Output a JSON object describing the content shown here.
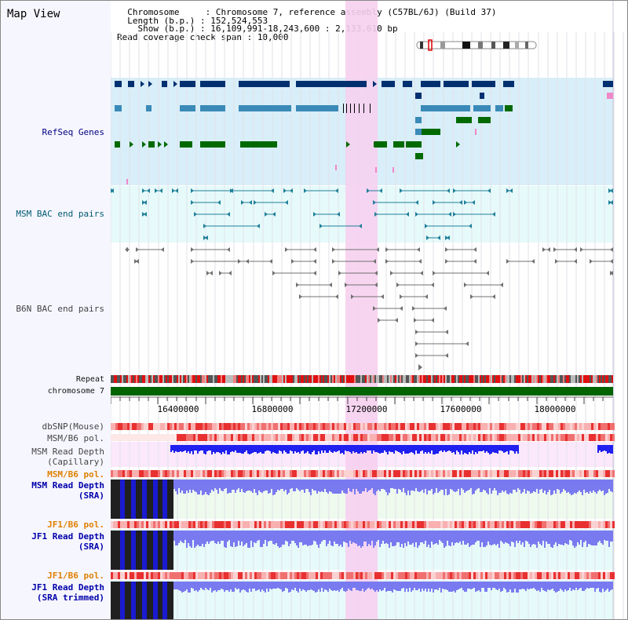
{
  "panel_title": "Map View",
  "info": {
    "chromosome_label": "Chromosome     :",
    "chromosome_value": "Chromosome 7, reference assembly (C57BL/6J) (Build 37)",
    "length_label": "Length (b.p.) :",
    "length_value": "152,524,553",
    "show_label": "Show (b.p.) :",
    "show_value": "16,109,991-18,243,600 : 2,133,610 bp",
    "coverage_label": "Read coverage check span :",
    "coverage_value": "10,000"
  },
  "tracks": [
    {
      "id": "refseq",
      "label": "RefSeq Genes",
      "color": "#000080"
    },
    {
      "id": "msm-bac",
      "label": "MSM BAC end pairs",
      "color": "#005a70"
    },
    {
      "id": "b6n-bac",
      "label": "B6N BAC end pairs",
      "color": "#444444"
    },
    {
      "id": "repeat",
      "label": "Repeat",
      "color": "#111111"
    },
    {
      "id": "chromosome",
      "label": "chromosome 7",
      "color": "#111111"
    },
    {
      "id": "dbsnp",
      "label": "dbSNP(Mouse)",
      "color": "#444444"
    },
    {
      "id": "msm-b6-pol",
      "label": "MSM/B6 pol.",
      "color": "#444444"
    },
    {
      "id": "msm-depth-cap",
      "label": "MSM Read Depth\n(Capillary)",
      "color": "#444444"
    },
    {
      "id": "msm-b6-pol-2",
      "label": "MSM/B6 pol.",
      "color": "#e08000"
    },
    {
      "id": "msm-depth-sra",
      "label": "MSM Read Depth\n(SRA)",
      "color": "#0000aa"
    },
    {
      "id": "jf1-b6-pol",
      "label": "JF1/B6 pol.",
      "color": "#e08000"
    },
    {
      "id": "jf1-depth-sra",
      "label": "JF1 Read Depth\n(SRA)",
      "color": "#0000aa"
    },
    {
      "id": "jf1-b6-pol-2",
      "label": "JF1/B6 pol.",
      "color": "#e08000"
    },
    {
      "id": "jf1-depth-trim",
      "label": "JF1 Read Depth\n(SRA trimmed)",
      "color": "#0000aa"
    }
  ],
  "axis": {
    "ticks": [
      "16400000",
      "16800000",
      "17200000",
      "17600000",
      "18000000"
    ]
  },
  "colors": {
    "highlight": "#f6d0f0",
    "refseq_bg": "#d8eef8",
    "bac_bg": "#e6fafa",
    "gene_navy": "#003070",
    "gene_steel": "#3a8ab8",
    "gene_green": "#006a00",
    "bac_teal": "#20809a",
    "bac_gray": "#707070",
    "chromosome_bar": "#006400",
    "depth_blue": "#2020f0",
    "depth_violet": "#7a7af0",
    "depth_black": "#202020"
  }
}
